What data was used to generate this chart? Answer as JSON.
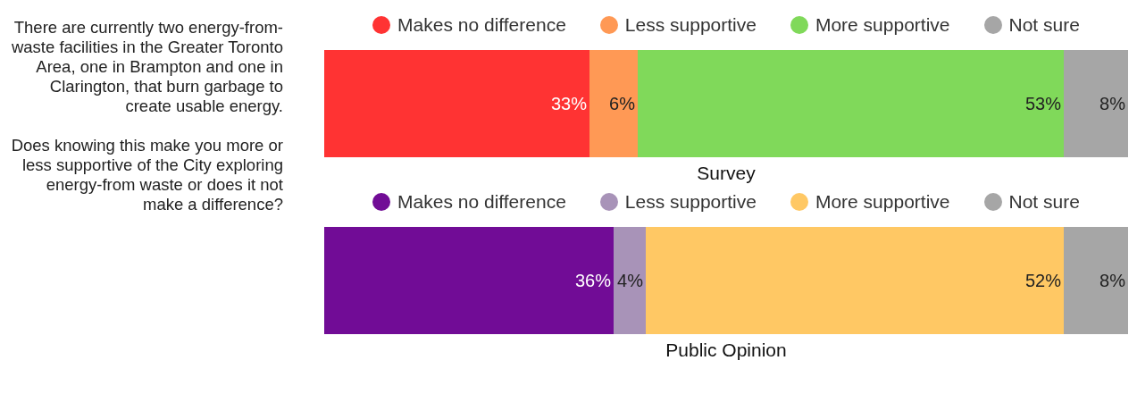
{
  "chart_data": [
    {
      "type": "bar",
      "orientation": "horizontal",
      "stacked": true,
      "categories": [
        null
      ],
      "xlabel": "Survey",
      "xlim": [
        0,
        100
      ],
      "tick_labels": false,
      "legend": "top",
      "marker": "circle",
      "annotations": [
        "There are currently two energy-from-waste facilities in the Greater Toronto Area, one in Brampton and one in Clarington, that burn garbage to create usable energy.",
        "Does knowing this make you more or less supportive of the City exploring energy-from waste or does it not make a difference?"
      ],
      "series": [
        {
          "name": "Makes no difference",
          "color": "#ff3333",
          "values": [
            33
          ],
          "value_labels": [
            "33%"
          ]
        },
        {
          "name": "Less supportive",
          "color": "#ff9955",
          "values": [
            6
          ],
          "value_labels": [
            "6%"
          ]
        },
        {
          "name": "More supportive",
          "color": "#80d95a",
          "values": [
            53
          ],
          "value_labels": [
            "53%"
          ]
        },
        {
          "name": "Not sure",
          "color": "#a6a6a6",
          "values": [
            8
          ],
          "value_labels": [
            "8%"
          ]
        }
      ]
    },
    {
      "type": "bar",
      "orientation": "horizontal",
      "stacked": true,
      "categories": [
        null
      ],
      "xlabel": "Public Opinion",
      "xlim": [
        0,
        100
      ],
      "tick_labels": false,
      "legend": "top",
      "marker": "circle",
      "series": [
        {
          "name": "Makes no difference",
          "color": "#710c96",
          "values": [
            36
          ],
          "value_labels": [
            "36%"
          ]
        },
        {
          "name": "Less supportive",
          "color": "#a893b8",
          "values": [
            4
          ],
          "value_labels": [
            "4%"
          ]
        },
        {
          "name": "More supportive",
          "color": "#ffc864",
          "values": [
            52
          ],
          "value_labels": [
            "52%"
          ]
        },
        {
          "name": "Not sure",
          "color": "#a6a6a6",
          "values": [
            8
          ],
          "value_labels": [
            "8%"
          ]
        }
      ]
    }
  ]
}
